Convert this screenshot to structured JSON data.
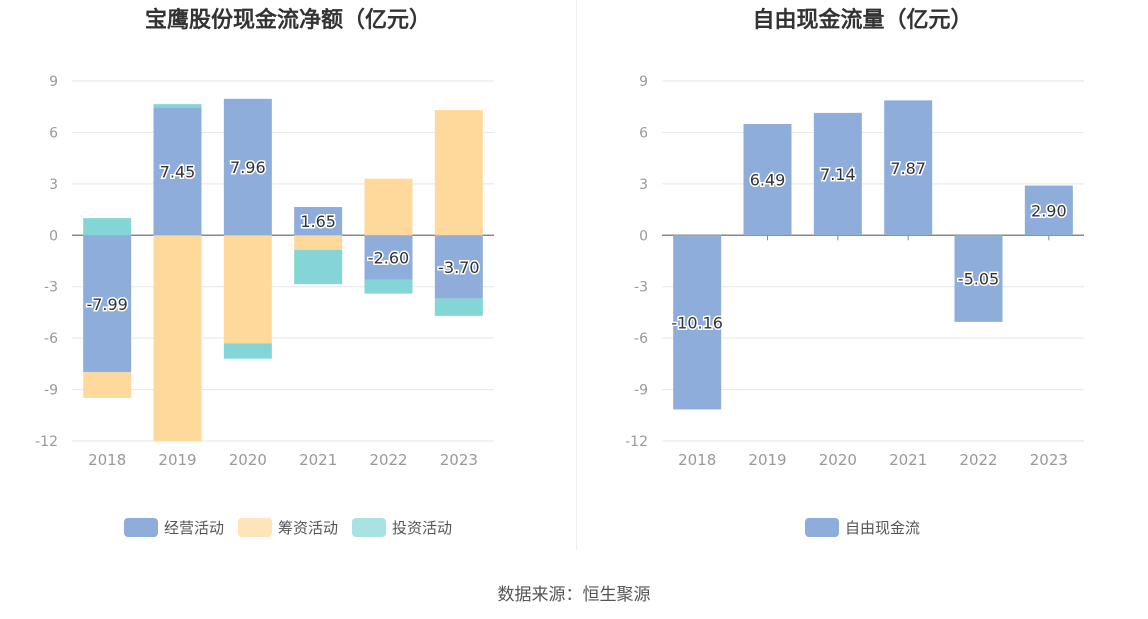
{
  "source_text": "数据来源：恒生聚源",
  "chart_data": [
    {
      "type": "bar",
      "stacked": true,
      "title": "宝鹰股份现金流净额（亿元）",
      "categories": [
        "2018",
        "2019",
        "2020",
        "2021",
        "2022",
        "2023"
      ],
      "yticks": [
        "9",
        "6",
        "3",
        "0",
        "-3",
        "-6",
        "-9",
        "-12"
      ],
      "ylim": [
        -12,
        9
      ],
      "grid": true,
      "legend_position": "bottom",
      "series": [
        {
          "name": "经营活动",
          "color": "#8eaddb",
          "values": [
            -7.99,
            7.45,
            7.96,
            1.65,
            -2.6,
            -3.7
          ],
          "labels": [
            "-7.99",
            "7.45",
            "7.96",
            "1.65",
            "-2.60",
            "-3.70"
          ]
        },
        {
          "name": "筹资活动",
          "color": "#ffd99b",
          "values": [
            -1.5,
            -12.0,
            -6.3,
            -0.85,
            3.3,
            7.3
          ]
        },
        {
          "name": "投资活动",
          "color": "#84d6d6",
          "values": [
            1.0,
            0.2,
            -0.9,
            -2.0,
            -0.8,
            -1.0
          ]
        }
      ]
    },
    {
      "type": "bar",
      "title": "自由现金流量（亿元）",
      "categories": [
        "2018",
        "2019",
        "2020",
        "2021",
        "2022",
        "2023"
      ],
      "yticks": [
        "9",
        "6",
        "3",
        "0",
        "-3",
        "-6",
        "-9",
        "-12"
      ],
      "ylim": [
        -12,
        9
      ],
      "grid": true,
      "legend_position": "bottom",
      "series": [
        {
          "name": "自由现金流",
          "color": "#8eaddb",
          "values": [
            -10.16,
            6.49,
            7.14,
            7.87,
            -5.05,
            2.9
          ],
          "labels": [
            "-10.16",
            "6.49",
            "7.14",
            "7.87",
            "-5.05",
            "2.90"
          ]
        }
      ]
    }
  ]
}
